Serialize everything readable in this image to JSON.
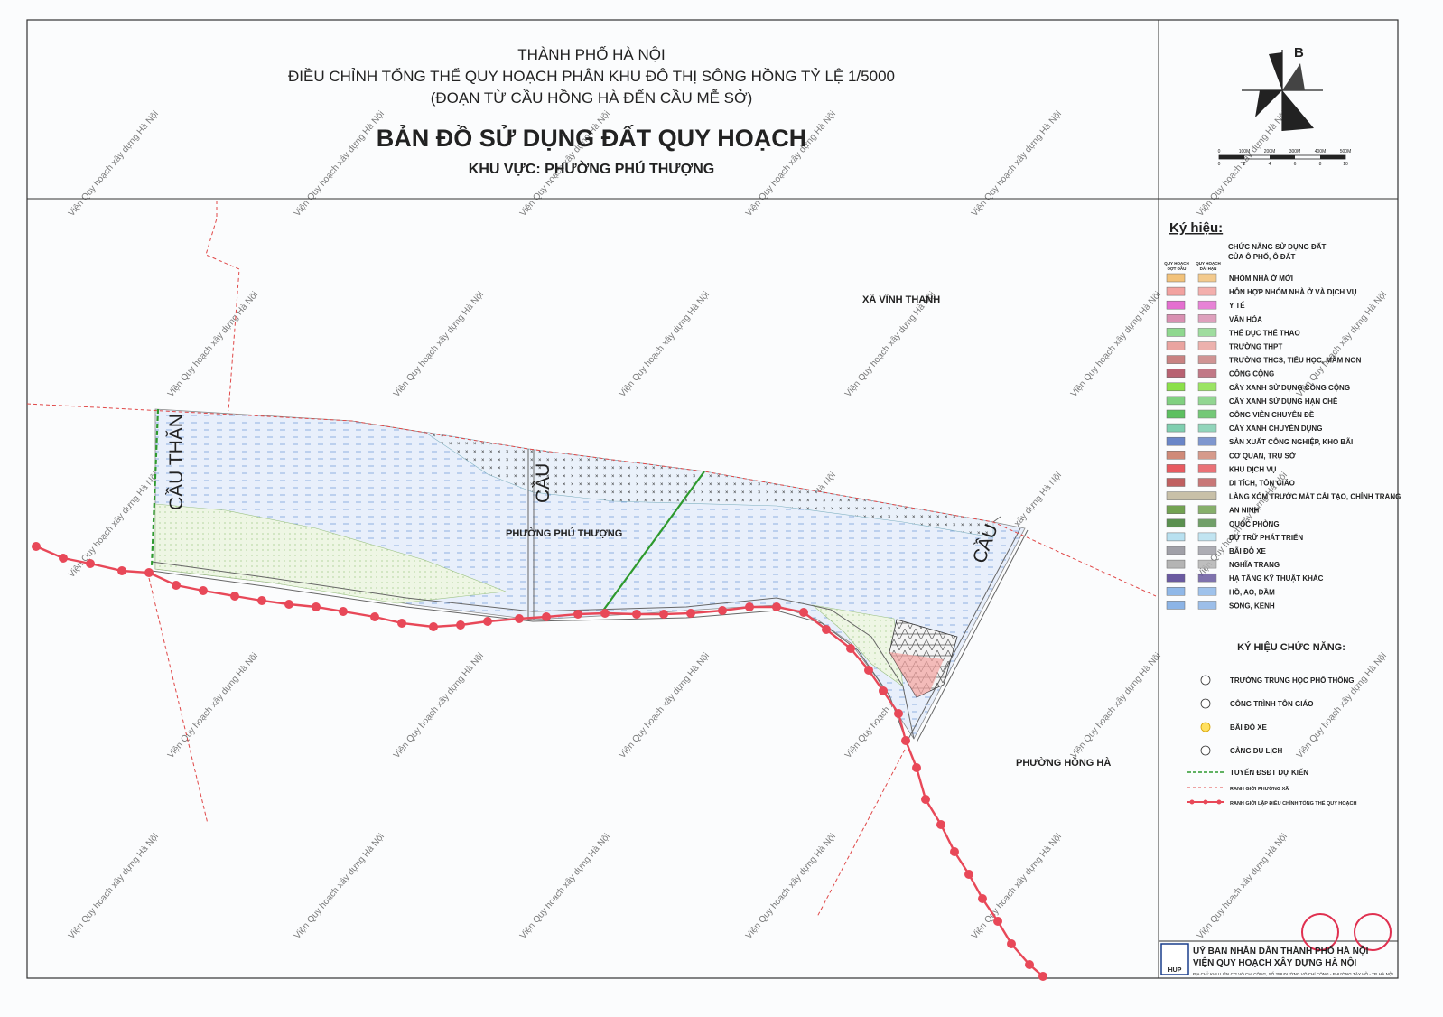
{
  "header": {
    "city": "THÀNH PHỐ HÀ NỘI",
    "project": "ĐIỀU CHỈNH TỔNG THỂ QUY HOẠCH PHÂN KHU ĐÔ THỊ SÔNG HỒNG TỶ LỆ 1/5000",
    "section": "(ĐOẠN TỪ CẦU HỒNG HÀ ĐẾN CẦU MỄ SỞ)",
    "title": "BẢN ĐỒ SỬ DỤNG ĐẤT QUY HOẠCH",
    "area": "KHU VỰC: PHƯỜNG PHÚ THƯỢNG"
  },
  "compass": {
    "north": "B"
  },
  "scale_bar": {
    "top_labels": [
      "0",
      "100M",
      "200M",
      "300M",
      "400M",
      "500M"
    ],
    "bottom_labels": [
      "0",
      "2",
      "4",
      "6",
      "8",
      "10"
    ]
  },
  "map_labels": {
    "vinh_thanh": "XÃ VĨNH THANH",
    "phu_thuong": "PHƯỜNG PHÚ THƯỢNG",
    "hong_ha": "PHƯỜNG HỒNG HÀ",
    "bridge_left": "CẦU THĂN",
    "bridge_middle": "CẦU",
    "bridge_right": "CẦU"
  },
  "watermark": "Viện Quy hoạch xây dựng Hà Nội",
  "legend": {
    "title": "Ký hiệu:",
    "land_use": {
      "heading": [
        "CHỨC NĂNG SỬ DỤNG ĐẤT",
        "CỦA Ô PHỐ, Ô ĐẤT"
      ],
      "columns": [
        [
          "QUY HOẠCH",
          "ĐỢT ĐẦU"
        ],
        [
          "QUY HOẠCH",
          "DÀI HẠN"
        ]
      ],
      "items": [
        {
          "label": "NHÓM NHÀ Ở MỚI",
          "color": "#f2c27a"
        },
        {
          "label": "HỖN HỢP NHÓM NHÀ Ở VÀ DỊCH VỤ",
          "color": "#f2a2a0"
        },
        {
          "label": "Y TẾ",
          "color": "#e46fd0"
        },
        {
          "label": "VĂN HÓA",
          "color": "#d990b2"
        },
        {
          "label": "THỂ DỤC THỂ THAO",
          "color": "#8fd88f"
        },
        {
          "label": "TRƯỜNG THPT",
          "color": "#eaa4a0"
        },
        {
          "label": "TRƯỜNG THCS, TIỂU HỌC, MẦM NON",
          "color": "#c98282"
        },
        {
          "label": "CÔNG CỘNG",
          "color": "#b86272"
        },
        {
          "label": "CÂY XANH SỬ DỤNG CÔNG CỘNG",
          "color": "#8be04a"
        },
        {
          "label": "CÂY XANH SỬ DỤNG HẠN CHẾ",
          "color": "#80d080"
        },
        {
          "label": "CÔNG VIÊN CHUYÊN ĐỀ",
          "color": "#5dc060"
        },
        {
          "label": "CÂY XANH CHUYÊN DỤNG",
          "color": "#7fcfb0"
        },
        {
          "label": "SẢN XUẤT CÔNG NGHIỆP, KHO BÃI",
          "color": "#6a86c8"
        },
        {
          "label": "CƠ QUAN, TRỤ SỞ",
          "color": "#d08a78"
        },
        {
          "label": "KHU DỊCH VỤ",
          "color": "#e85a60"
        },
        {
          "label": "DI TÍCH, TÔN GIÁO",
          "color": "#c06060"
        },
        {
          "label": "LÀNG XÓM TRƯỚC MẮT CẢI TẠO, CHỈNH TRANG",
          "color": "#c8c0a8"
        },
        {
          "label": "AN NINH",
          "color": "#72a252"
        },
        {
          "label": "QUỐC PHÒNG",
          "color": "#5a9050"
        },
        {
          "label": "DỰ TRỮ PHÁT TRIỂN",
          "color": "#b8e0f0"
        },
        {
          "label": "BÃI ĐỖ XE",
          "color": "#a0a0a8"
        },
        {
          "label": "NGHĨA TRANG",
          "color": "#b4b4b4"
        },
        {
          "label": "HẠ TẦNG KỸ THUẬT KHÁC",
          "color": "#6a5aa0"
        },
        {
          "label": "HỒ, AO, ĐẦM",
          "color": "#90b8e8"
        },
        {
          "label": "SÔNG, KÊNH",
          "color": "#8cb4e6"
        }
      ]
    },
    "functions": {
      "title": "KÝ HIỆU CHỨC NĂNG:",
      "items": [
        "TRƯỜNG TRUNG HỌC PHỔ THÔNG",
        "CÔNG TRÌNH TÔN GIÁO",
        "BÃI ĐỖ XE",
        "CẢNG DU LỊCH",
        "TUYẾN ĐSĐT DỰ KIẾN",
        "RANH GIỚI PHƯỜNG XÃ",
        "RANH GIỚI LẬP ĐIỀU CHỈNH TỔNG THỂ QUY HOẠCH"
      ]
    }
  },
  "footer": {
    "logo": "HUP",
    "authority": "UỶ BAN NHÂN DÂN THÀNH PHỐ HÀ NỘI",
    "institute": "VIỆN QUY HOẠCH XÂY DỰNG HÀ NỘI",
    "address": "ĐỊA CHỈ: KHU LIÊN CƠ VÕ CHÍ CÔNG, SỐ 258 ĐƯỜNG VÕ CHÍ CÔNG - PHƯỜNG TÂY HỒ - TP. HÀ NỘI"
  }
}
